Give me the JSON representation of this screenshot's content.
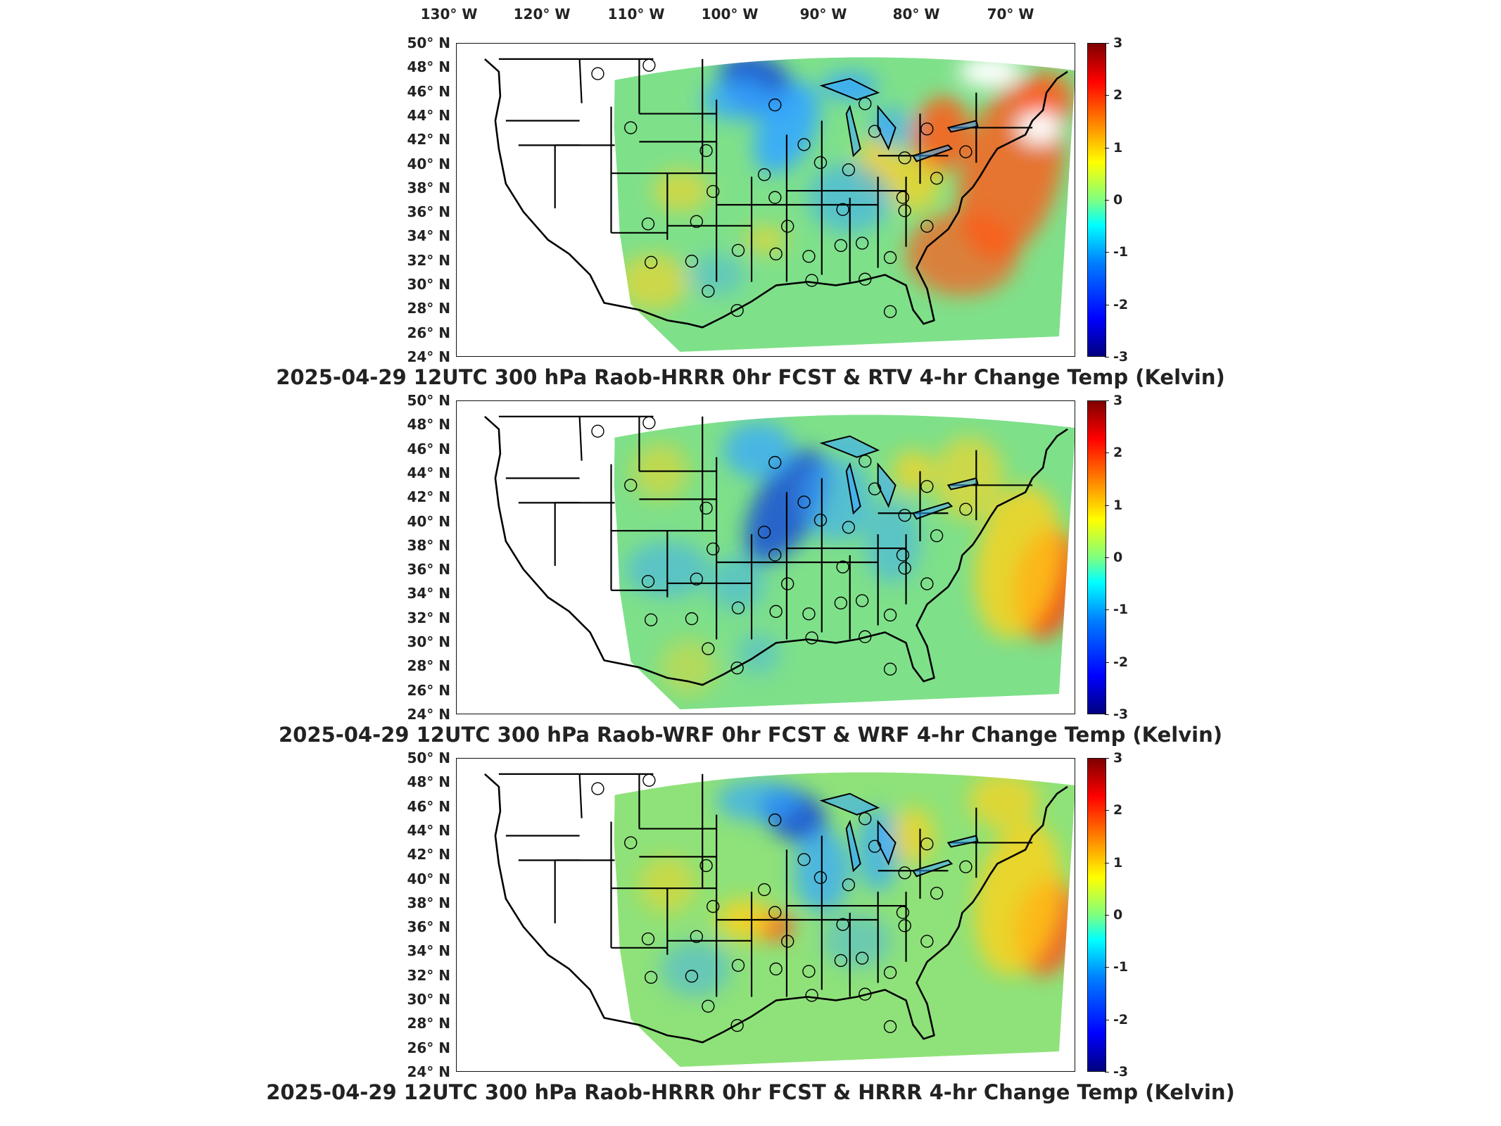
{
  "map": {
    "longitude_labels": [
      "130° W",
      "120° W",
      "110° W",
      "100° W",
      "90° W",
      "80° W",
      "70° W"
    ],
    "latitude_labels": [
      "50° N",
      "48° N",
      "46° N",
      "44° N",
      "42° N",
      "40° N",
      "38° N",
      "36° N",
      "34° N",
      "32° N",
      "30° N",
      "28° N",
      "26° N",
      "24° N"
    ],
    "colorbar": {
      "ticks": [
        "3",
        "2",
        "1",
        "0",
        "-1",
        "-2",
        "-3"
      ],
      "min": -3,
      "max": 3,
      "colormap": "jet",
      "colors": [
        "#00007f",
        "#0000ff",
        "#0080ff",
        "#00ffff",
        "#7fff7f",
        "#ffff00",
        "#ff8000",
        "#ff0000",
        "#7f0000"
      ]
    }
  },
  "panels": [
    {
      "title": "2025-04-29 12UTC 300 hPa Raob-HRRR 0hr FCST & RTV 4-hr Change Temp (Kelvin)",
      "field_colors": {
        "base": "#7fe08a",
        "cold_core": "#1a4fd6",
        "cold": "#35a8ff",
        "warm": "#ffd21a",
        "hot": "#ff5a1a",
        "missing": "#ffffff"
      }
    },
    {
      "title": "2025-04-29 12UTC 300 hPa Raob-WRF 0hr FCST & WRF 4-hr Change Temp (Kelvin)",
      "field_colors": {
        "base": "#7fe08a",
        "cold_core": "#1a4fd6",
        "cold": "#35a8ff",
        "warm": "#ffd21a",
        "hot": "#ff3b12"
      }
    },
    {
      "title": "2025-04-29 12UTC 300 hPa Raob-HRRR 0hr FCST & HRRR 4-hr Change Temp (Kelvin)",
      "field_colors": {
        "base": "#8fe27a",
        "cold_core": "#1a4fd6",
        "cold": "#35a8ff",
        "warm": "#ffd21a",
        "hot": "#ff4a14"
      }
    }
  ],
  "raob_stations": [
    {
      "lon": -111.9,
      "lat": 47.5
    },
    {
      "lon": -106.6,
      "lat": 48.2
    },
    {
      "lon": -108.5,
      "lat": 43.0
    },
    {
      "lon": -100.7,
      "lat": 41.1
    },
    {
      "lon": -100.0,
      "lat": 37.7
    },
    {
      "lon": -94.7,
      "lat": 39.1
    },
    {
      "lon": -106.7,
      "lat": 35.0
    },
    {
      "lon": -101.7,
      "lat": 35.2
    },
    {
      "lon": -97.4,
      "lat": 32.8
    },
    {
      "lon": -102.2,
      "lat": 31.9
    },
    {
      "lon": -106.4,
      "lat": 31.8
    },
    {
      "lon": -100.5,
      "lat": 29.4
    },
    {
      "lon": -97.5,
      "lat": 27.8
    },
    {
      "lon": -93.5,
      "lat": 32.5
    },
    {
      "lon": -90.1,
      "lat": 32.3
    },
    {
      "lon": -86.8,
      "lat": 33.2
    },
    {
      "lon": -84.6,
      "lat": 33.4
    },
    {
      "lon": -89.8,
      "lat": 30.3
    },
    {
      "lon": -84.3,
      "lat": 30.4
    },
    {
      "lon": -81.7,
      "lat": 27.7
    },
    {
      "lon": -81.7,
      "lat": 32.2
    },
    {
      "lon": -77.9,
      "lat": 34.8
    },
    {
      "lon": -80.2,
      "lat": 36.1
    },
    {
      "lon": -86.6,
      "lat": 36.2
    },
    {
      "lon": -92.3,
      "lat": 34.8
    },
    {
      "lon": -93.6,
      "lat": 37.2
    },
    {
      "lon": -88.9,
      "lat": 40.1
    },
    {
      "lon": -90.6,
      "lat": 41.6
    },
    {
      "lon": -86.0,
      "lat": 39.5
    },
    {
      "lon": -83.3,
      "lat": 42.7
    },
    {
      "lon": -80.2,
      "lat": 40.5
    },
    {
      "lon": -76.9,
      "lat": 38.8
    },
    {
      "lon": -77.9,
      "lat": 42.9
    },
    {
      "lon": -73.9,
      "lat": 41.0
    },
    {
      "lon": -84.3,
      "lat": 45.0
    },
    {
      "lon": -93.6,
      "lat": 44.9
    },
    {
      "lon": -80.4,
      "lat": 37.2
    }
  ]
}
